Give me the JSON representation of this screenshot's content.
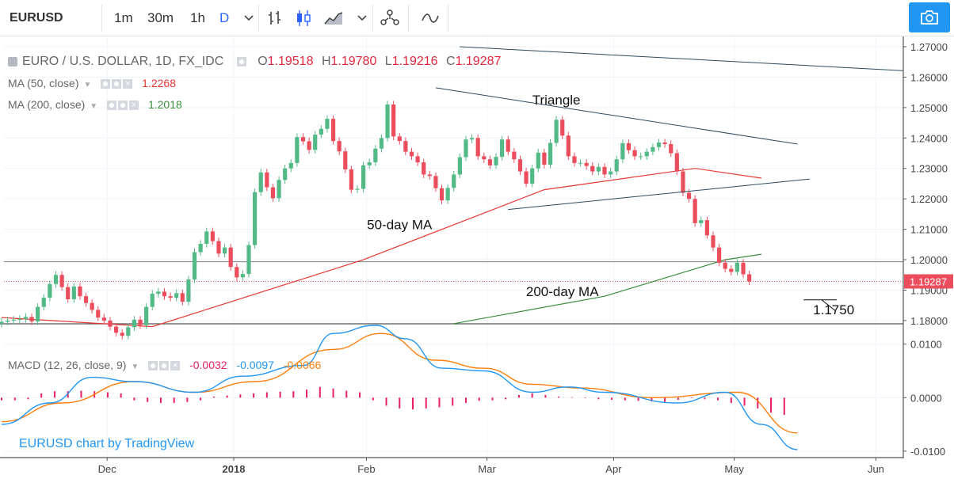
{
  "toolbar": {
    "symbol": "EURUSD",
    "intervals": [
      "1m",
      "30m",
      "1h",
      "D"
    ],
    "active_interval": "D",
    "icons": [
      "chevron-down-icon",
      "bar-chart-icon",
      "candles-icon",
      "area-chart-icon",
      "chevron-down-icon",
      "compare-icon",
      "indicators-icon",
      "camera-icon"
    ]
  },
  "legend": {
    "title": "EURO / U.S. DOLLAR, 1D, FX_IDC",
    "open_label": "O",
    "open": "1.19518",
    "high_label": "H",
    "high": "1.19780",
    "low_label": "L",
    "low": "1.19216",
    "close_label": "C",
    "close": "1.19287",
    "ma50_label": "MA (50, close)",
    "ma50_value": "1.2268",
    "ma200_label": "MA (200, close)",
    "ma200_value": "1.2018",
    "macd_label": "MACD (12, 26, close, 9)",
    "macd_hist": "-0.0032",
    "macd_line": "-0.0097",
    "macd_signal": "-0.0066"
  },
  "colors": {
    "up": "#53b987",
    "down": "#eb4d5c",
    "ma50": "#e53935",
    "ma200": "#388e3c",
    "macd": "#2196f3",
    "signal": "#ff7f0e",
    "hist": "#e91e63",
    "trend": "#2d4a5e",
    "axis_text": "#444444",
    "price_tag": "#eb4d5c"
  },
  "watermark": "EURUSD chart by TradingView",
  "chart_data": [
    {
      "type": "candlestick",
      "title": "EURO / U.S. DOLLAR, 1D, FX_IDC",
      "x_ticks": [
        "Dec",
        "2018",
        "Feb",
        "Mar",
        "Apr",
        "May",
        "Jun"
      ],
      "y_ticks": [
        "1.27000",
        "1.26000",
        "1.25000",
        "1.24000",
        "1.23000",
        "1.22000",
        "1.21000",
        "1.20000",
        "1.19000",
        "1.18000"
      ],
      "ylim": [
        1.1792,
        1.2713
      ],
      "last_price": "1.19287",
      "horizontal_level": 1.1993,
      "candles_close": [
        1.1796,
        1.18,
        1.1803,
        1.1805,
        1.1812,
        1.1797,
        1.1845,
        1.1875,
        1.192,
        1.195,
        1.191,
        1.187,
        1.1912,
        1.188,
        1.1858,
        1.1835,
        1.181,
        1.18,
        1.178,
        1.176,
        1.175,
        1.1778,
        1.1803,
        1.1785,
        1.1845,
        1.1888,
        1.1895,
        1.188,
        1.1875,
        1.189,
        1.1862,
        1.1935,
        1.2025,
        1.2052,
        1.2093,
        1.2061,
        1.202,
        1.204,
        1.1976,
        1.1942,
        1.1953,
        1.2048,
        1.2222,
        1.2287,
        1.2238,
        1.2202,
        1.2262,
        1.23,
        1.2318,
        1.2403,
        1.2389,
        1.2361,
        1.2411,
        1.243,
        1.2463,
        1.239,
        1.2356,
        1.2297,
        1.223,
        1.2233,
        1.231,
        1.232,
        1.2365,
        1.24,
        1.251,
        1.2405,
        1.239,
        1.2355,
        1.234,
        1.232,
        1.228,
        1.2275,
        1.2235,
        1.2195,
        1.2236,
        1.228,
        1.2337,
        1.2395,
        1.24,
        1.234,
        1.233,
        1.231,
        1.2338,
        1.2395,
        1.2355,
        1.233,
        1.229,
        1.225,
        1.23,
        1.2352,
        1.2312,
        1.2384,
        1.246,
        1.2408,
        1.234,
        1.2318,
        1.2318,
        1.2308,
        1.229,
        1.2305,
        1.228,
        1.229,
        1.233,
        1.2383,
        1.236,
        1.234,
        1.234,
        1.2355,
        1.237,
        1.2385,
        1.238,
        1.235,
        1.229,
        1.222,
        1.22,
        1.212,
        1.213,
        1.208,
        1.204,
        1.199,
        1.197,
        1.196,
        1.199,
        1.1952,
        1.1929
      ],
      "candles_open": [
        1.179,
        1.1796,
        1.18,
        1.1803,
        1.1805,
        1.1812,
        1.1797,
        1.1845,
        1.1875,
        1.192,
        1.195,
        1.191,
        1.187,
        1.1912,
        1.188,
        1.1858,
        1.1835,
        1.181,
        1.18,
        1.178,
        1.176,
        1.175,
        1.1778,
        1.1803,
        1.1785,
        1.1845,
        1.1888,
        1.1895,
        1.188,
        1.1875,
        1.189,
        1.1862,
        1.1935,
        1.2025,
        1.2052,
        1.2093,
        1.2061,
        1.202,
        1.204,
        1.1976,
        1.1942,
        1.1953,
        1.2048,
        1.2222,
        1.2287,
        1.2238,
        1.2202,
        1.2262,
        1.23,
        1.2318,
        1.2403,
        1.2389,
        1.2361,
        1.2411,
        1.243,
        1.2463,
        1.239,
        1.2356,
        1.2297,
        1.223,
        1.2233,
        1.231,
        1.232,
        1.2365,
        1.24,
        1.251,
        1.2405,
        1.239,
        1.2355,
        1.234,
        1.232,
        1.228,
        1.2275,
        1.2235,
        1.2195,
        1.2236,
        1.228,
        1.2337,
        1.2395,
        1.24,
        1.234,
        1.233,
        1.231,
        1.2338,
        1.2395,
        1.2355,
        1.233,
        1.229,
        1.225,
        1.23,
        1.2352,
        1.2312,
        1.2384,
        1.246,
        1.2408,
        1.234,
        1.2318,
        1.2318,
        1.2308,
        1.229,
        1.2305,
        1.228,
        1.229,
        1.233,
        1.2383,
        1.236,
        1.234,
        1.234,
        1.2355,
        1.237,
        1.2385,
        1.238,
        1.235,
        1.229,
        1.222,
        1.22,
        1.212,
        1.213,
        1.208,
        1.204,
        1.199,
        1.197,
        1.196,
        1.199,
        1.1952
      ],
      "ma50": [
        [
          0,
          1.181
        ],
        [
          25,
          1.178
        ],
        [
          60,
          1.2
        ],
        [
          90,
          1.223
        ],
        [
          115,
          1.23
        ],
        [
          126,
          1.2268
        ]
      ],
      "ma200": [
        [
          75,
          1.179
        ],
        [
          100,
          1.188
        ],
        [
          120,
          1.2
        ],
        [
          126,
          1.2018
        ]
      ],
      "trendlines": [
        {
          "from": [
            76,
            1.27
          ],
          "to": [
            160,
            1.261
          ]
        },
        {
          "from": [
            72,
            1.2565
          ],
          "to": [
            132,
            1.238
          ]
        },
        {
          "from": [
            84,
            1.2165
          ],
          "to": [
            134,
            1.2265
          ]
        }
      ],
      "annotations": [
        {
          "text": "Triangle",
          "at": [
            92,
            1.251
          ]
        },
        {
          "text": "50-day MA",
          "at": [
            66,
            1.21
          ]
        },
        {
          "text": "200-day MA",
          "at": [
            93,
            1.188
          ]
        },
        {
          "text": "1.1750",
          "at": [
            138,
            1.182
          ]
        }
      ]
    },
    {
      "type": "macd",
      "title": "MACD (12, 26, close, 9)",
      "y_ticks": [
        "0.0100",
        "0.0000",
        "-0.0100"
      ],
      "ylim": [
        -0.0112,
        0.0138
      ],
      "macd": [
        [
          0,
          -0.005
        ],
        [
          8,
          -0.001
        ],
        [
          15,
          0.0038
        ],
        [
          22,
          0.003
        ],
        [
          32,
          0.001
        ],
        [
          40,
          0.004
        ],
        [
          50,
          0.006
        ],
        [
          55,
          0.012
        ],
        [
          62,
          0.0135
        ],
        [
          67,
          0.011
        ],
        [
          73,
          0.0055
        ],
        [
          80,
          0.005
        ],
        [
          88,
          0.001
        ],
        [
          94,
          0.002
        ],
        [
          100,
          0.001
        ],
        [
          112,
          -0.001
        ],
        [
          120,
          0.001
        ],
        [
          126,
          -0.005
        ],
        [
          132,
          -0.0097
        ]
      ],
      "signal": [
        [
          0,
          -0.0045
        ],
        [
          10,
          -0.001
        ],
        [
          22,
          0.003
        ],
        [
          32,
          0.001
        ],
        [
          42,
          0.003
        ],
        [
          55,
          0.009
        ],
        [
          63,
          0.012
        ],
        [
          72,
          0.007
        ],
        [
          80,
          0.0055
        ],
        [
          88,
          0.0025
        ],
        [
          96,
          0.0018
        ],
        [
          108,
          0.0
        ],
        [
          122,
          0.001
        ],
        [
          132,
          -0.0066
        ]
      ],
      "hist": [
        -0.0005,
        -0.0005,
        -0.0003,
        0.0008,
        0.0012,
        0.0012,
        0.0013,
        0.0012,
        0.001,
        0.0008,
        -0.0005,
        -0.0008,
        -0.001,
        -0.001,
        -0.0008,
        -0.0005,
        0.0002,
        0.0004,
        0.0006,
        0.0008,
        0.001,
        0.0011,
        0.0012,
        0.0015,
        0.002,
        0.0017,
        0.0013,
        0.001,
        -0.0005,
        -0.0015,
        -0.002,
        -0.0022,
        -0.002,
        -0.0018,
        -0.0015,
        -0.001,
        -0.0006,
        -0.0005,
        -0.0003,
        0.0005,
        0.0008,
        0.0005,
        0.0002,
        0.0001,
        -0.0001,
        -0.0003,
        -0.0004,
        -0.0005,
        -0.0006,
        -0.0007,
        -0.0008,
        -0.0004,
        -0.0001,
        -0.0003,
        -0.0005,
        -0.001,
        -0.0015,
        -0.002,
        -0.0028,
        -0.0032
      ]
    }
  ]
}
